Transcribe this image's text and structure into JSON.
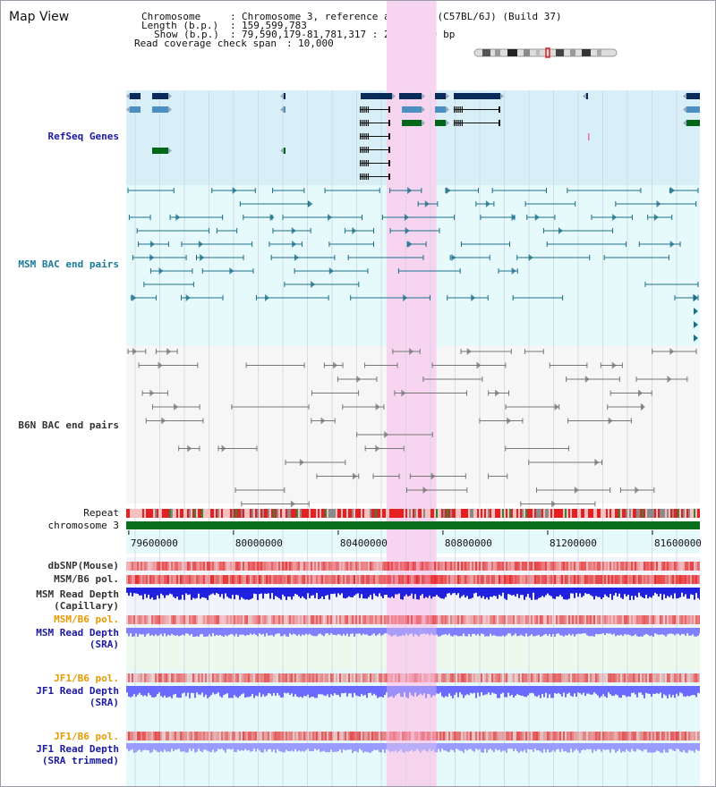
{
  "page": {
    "title": "Map View"
  },
  "header": {
    "chromosome_label": "Chromosome",
    "chromosome_value": "Chromosome 3, reference assembly (C57BL/6J) (Build 37)",
    "length_label": "Length (b.p.)",
    "length_value": "159,599,783",
    "show_label": "Show (b.p.)",
    "show_value": "79,590,179-81,781,317 : 2,191,139 bp",
    "coverage_label": "Read coverage check span",
    "coverage_value": "10,000"
  },
  "tracks": {
    "refseq": "RefSeq Genes",
    "msm_bac": "MSM BAC end pairs",
    "b6n_bac": "B6N BAC end pairs",
    "repeat": "Repeat",
    "chromosome": "chromosome 3",
    "dbsnp": "dbSNP(Mouse)",
    "msm_b6_pol_1": "MSM/B6 pol.",
    "msm_depth_cap_1": "MSM Read Depth",
    "msm_depth_cap_2": "(Capillary)",
    "msm_b6_pol_2": "MSM/B6 pol.",
    "msm_depth_sra_1": "MSM Read Depth",
    "msm_depth_sra_2": "(SRA)",
    "jf1_b6_pol_1": "JF1/B6 pol.",
    "jf1_depth_sra_1": "JF1 Read Depth",
    "jf1_depth_sra_2": "(SRA)",
    "jf1_b6_pol_2": "JF1/B6 pol.",
    "jf1_depth_trim_1": "JF1 Read Depth",
    "jf1_depth_trim_2": "(SRA trimmed)"
  },
  "axis": {
    "ticks": [
      "79600000",
      "80000000",
      "80400000",
      "80800000",
      "81200000",
      "81600000"
    ],
    "tick_values": [
      79600000,
      80000000,
      80400000,
      80800000,
      81200000,
      81600000
    ],
    "view_start": 79590179,
    "view_end": 81781317,
    "highlight_start": 80585000,
    "highlight_end": 80775000
  },
  "colors": {
    "refseq_bg": "#d8eff8",
    "msm_bg": "#e6f9fb",
    "highlight": "#f7d4ef",
    "dark_blue": "#0a2a5a",
    "mid_blue": "#4a8fc0",
    "green": "#006618",
    "teal": "#1d6f8a",
    "grey": "#777777",
    "chrom_green": "#0a6e1c",
    "red": "#e62020",
    "depth_blue": "#2020e0",
    "label_blue": "#1a1aa0",
    "label_orange": "#e69a00",
    "label_teal": "#1a7a9a",
    "label_dark": "#333333"
  }
}
